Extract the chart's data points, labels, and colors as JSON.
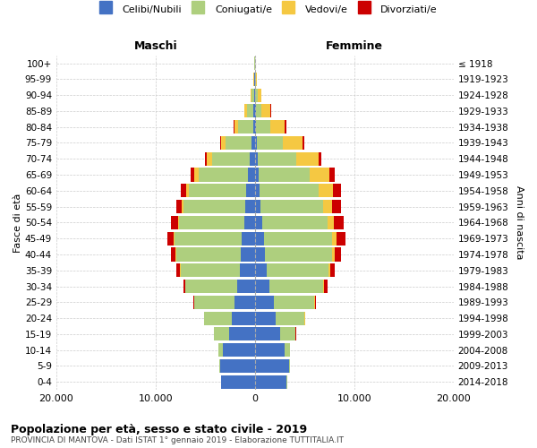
{
  "age_groups": [
    "0-4",
    "5-9",
    "10-14",
    "15-19",
    "20-24",
    "25-29",
    "30-34",
    "35-39",
    "40-44",
    "45-49",
    "50-54",
    "55-59",
    "60-64",
    "65-69",
    "70-74",
    "75-79",
    "80-84",
    "85-89",
    "90-94",
    "95-99",
    "100+"
  ],
  "birth_years": [
    "2014-2018",
    "2009-2013",
    "2004-2008",
    "1999-2003",
    "1994-1998",
    "1989-1993",
    "1984-1988",
    "1979-1983",
    "1974-1978",
    "1969-1973",
    "1964-1968",
    "1959-1963",
    "1954-1958",
    "1949-1953",
    "1944-1948",
    "1939-1943",
    "1934-1938",
    "1929-1933",
    "1924-1928",
    "1919-1923",
    "≤ 1918"
  ],
  "males_celibi": [
    3400,
    3500,
    3200,
    2600,
    2300,
    2100,
    1800,
    1500,
    1400,
    1300,
    1100,
    950,
    850,
    700,
    550,
    350,
    200,
    120,
    80,
    30,
    10
  ],
  "males_coniugati": [
    20,
    100,
    500,
    1500,
    2800,
    4000,
    5200,
    6000,
    6500,
    6800,
    6500,
    6200,
    5800,
    5000,
    3800,
    2600,
    1500,
    700,
    250,
    80,
    20
  ],
  "males_vedovi": [
    1,
    1,
    2,
    3,
    5,
    8,
    15,
    30,
    60,
    100,
    150,
    200,
    300,
    400,
    500,
    450,
    350,
    200,
    80,
    20,
    5
  ],
  "males_divorziati": [
    1,
    2,
    5,
    20,
    50,
    100,
    200,
    350,
    500,
    650,
    700,
    600,
    500,
    350,
    200,
    100,
    60,
    30,
    15,
    5,
    2
  ],
  "females_celibi": [
    3200,
    3400,
    3000,
    2500,
    2100,
    1900,
    1500,
    1200,
    1050,
    900,
    750,
    600,
    500,
    380,
    280,
    200,
    130,
    80,
    50,
    20,
    8
  ],
  "females_coniugati": [
    25,
    120,
    550,
    1600,
    2900,
    4100,
    5400,
    6200,
    6700,
    6900,
    6600,
    6300,
    5900,
    5100,
    3900,
    2600,
    1400,
    600,
    200,
    60,
    15
  ],
  "females_vedovi": [
    1,
    2,
    5,
    10,
    20,
    40,
    80,
    150,
    250,
    400,
    600,
    900,
    1500,
    2000,
    2200,
    2000,
    1500,
    900,
    400,
    100,
    30
  ],
  "females_divorziati": [
    1,
    2,
    8,
    25,
    70,
    150,
    300,
    500,
    700,
    900,
    950,
    900,
    750,
    550,
    350,
    180,
    100,
    50,
    20,
    5,
    2
  ],
  "colors": {
    "celibi": "#4472C4",
    "coniugati": "#AECF7E",
    "vedovi": "#F5C842",
    "divorziati": "#CC0000"
  },
  "xlim": 20000,
  "title": "Popolazione per età, sesso e stato civile - 2019",
  "subtitle": "PROVINCIA DI MANTOVA - Dati ISTAT 1° gennaio 2019 - Elaborazione TUTTITALIA.IT",
  "ylabel_left": "Fasce di età",
  "ylabel_right": "Anni di nascita",
  "xlabel_left": "Maschi",
  "xlabel_right": "Femmine",
  "legend_labels": [
    "Celibi/Nubili",
    "Coniugati/e",
    "Vedovi/e",
    "Divorziati/e"
  ],
  "bg_color": "#FFFFFF",
  "grid_color": "#CCCCCC"
}
